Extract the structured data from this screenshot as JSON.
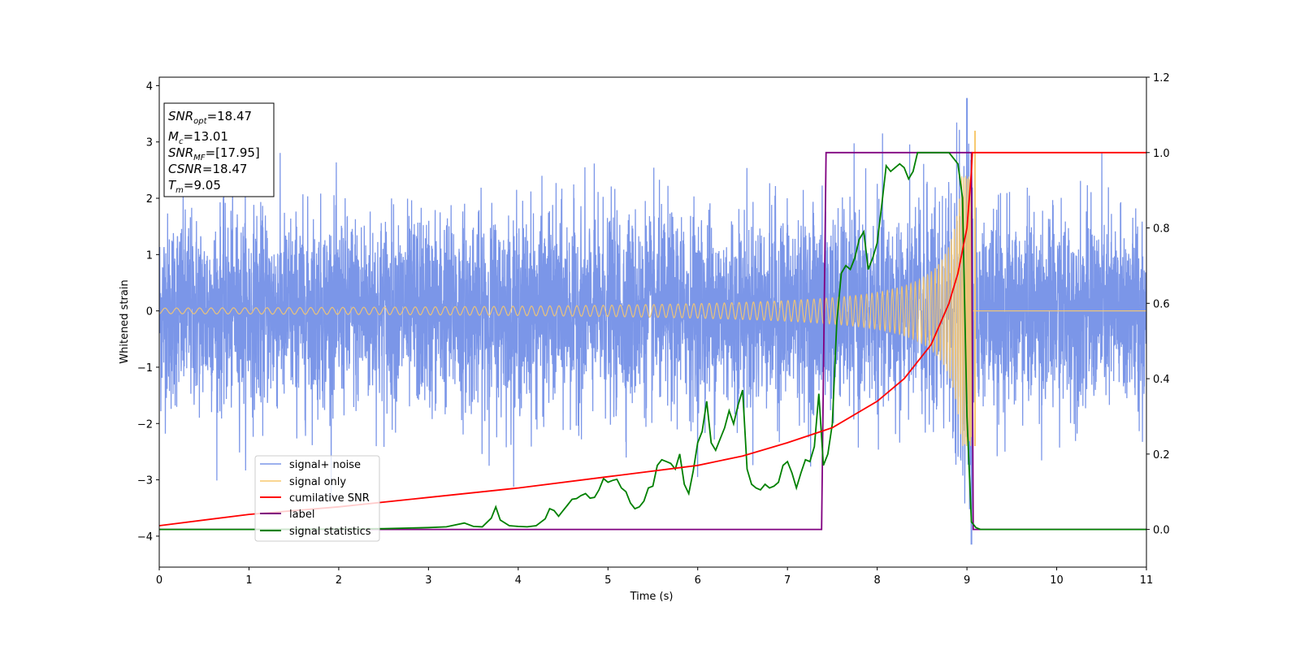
{
  "chart_data": {
    "type": "line",
    "xlabel": "Time (s)",
    "ylabel": "Whitened strain",
    "xlim": [
      0,
      11
    ],
    "ylim": [
      -4.55,
      4.15
    ],
    "y2lim": [
      -0.1,
      1.2
    ],
    "x_ticks": [
      "0",
      "1",
      "2",
      "3",
      "4",
      "5",
      "6",
      "7",
      "8",
      "9",
      "10",
      "11"
    ],
    "y_ticks": [
      "4",
      "3",
      "2",
      "1",
      "0",
      "−1",
      "−2",
      "−3",
      "−4"
    ],
    "y2_ticks": [
      "1.2",
      "1.0",
      "0.8",
      "0.6",
      "0.4",
      "0.2",
      "0.0"
    ],
    "grid": false,
    "legend_position": "lower-left",
    "info_box": [
      {
        "main": "SNR",
        "sub": "opt",
        "value": "=18.47"
      },
      {
        "main": "M",
        "sub": "c",
        "value": "=13.01"
      },
      {
        "main": "SNR",
        "sub": "MF",
        "value": "=[17.95]"
      },
      {
        "main": "CSNR",
        "sub": "",
        "value": "=18.47"
      },
      {
        "main": "T",
        "sub": "m",
        "value": "=9.05"
      }
    ],
    "series": [
      {
        "name": "signal+ noise",
        "color": "#7b96e8",
        "axis": "left",
        "description_values": {
          "typical_range": [
            -2.3,
            2.3
          ],
          "max": 3.78,
          "min": -4.15,
          "max_at": 9.0,
          "min_at": 9.05
        }
      },
      {
        "name": "signal only",
        "color": "#f7c86e",
        "axis": "left",
        "chirp": {
          "start_amplitude": 0.05,
          "end_amplitude": 2.4,
          "merger_time": 9.05,
          "peak": 3.2
        }
      },
      {
        "name": "cumilative SNR",
        "color": "#ff0000",
        "axis": "right",
        "x": [
          0,
          1,
          2,
          3,
          4,
          5,
          6,
          6.5,
          7,
          7.5,
          8,
          8.3,
          8.6,
          8.8,
          8.9,
          9.0,
          9.05,
          9.06,
          11
        ],
        "y": [
          0.01,
          0.04,
          0.06,
          0.085,
          0.11,
          0.14,
          0.17,
          0.195,
          0.23,
          0.27,
          0.34,
          0.4,
          0.49,
          0.6,
          0.68,
          0.8,
          0.95,
          1.0,
          1.0
        ]
      },
      {
        "name": "label",
        "color": "#800080",
        "axis": "right",
        "x": [
          0,
          7.38,
          7.43,
          9.05,
          9.07,
          11
        ],
        "y": [
          0,
          0,
          1,
          1,
          0,
          0
        ]
      },
      {
        "name": "signal statistics",
        "color": "#008000",
        "axis": "right",
        "x": [
          0,
          1,
          2,
          2.5,
          3,
          3.2,
          3.4,
          3.5,
          3.6,
          3.7,
          3.75,
          3.8,
          3.9,
          4.0,
          4.1,
          4.2,
          4.3,
          4.35,
          4.4,
          4.45,
          4.5,
          4.55,
          4.6,
          4.65,
          4.7,
          4.75,
          4.8,
          4.85,
          4.9,
          4.95,
          5.0,
          5.05,
          5.1,
          5.15,
          5.2,
          5.25,
          5.3,
          5.35,
          5.4,
          5.45,
          5.5,
          5.55,
          5.6,
          5.65,
          5.7,
          5.75,
          5.8,
          5.85,
          5.9,
          5.95,
          6.0,
          6.05,
          6.1,
          6.15,
          6.2,
          6.25,
          6.3,
          6.35,
          6.4,
          6.45,
          6.5,
          6.55,
          6.6,
          6.65,
          6.7,
          6.75,
          6.8,
          6.85,
          6.9,
          6.95,
          7.0,
          7.05,
          7.1,
          7.15,
          7.2,
          7.25,
          7.3,
          7.35,
          7.4,
          7.45,
          7.5,
          7.55,
          7.6,
          7.65,
          7.7,
          7.75,
          7.8,
          7.85,
          7.9,
          7.95,
          8.0,
          8.05,
          8.1,
          8.15,
          8.2,
          8.25,
          8.3,
          8.35,
          8.4,
          8.45,
          8.5,
          8.6,
          8.7,
          8.8,
          8.9,
          8.95,
          9.0,
          9.05,
          9.1,
          9.15,
          9.2,
          9.5,
          10,
          11
        ],
        "y": [
          0,
          0,
          0.001,
          0.002,
          0.005,
          0.007,
          0.017,
          0.008,
          0.007,
          0.03,
          0.06,
          0.025,
          0.01,
          0.008,
          0.007,
          0.01,
          0.028,
          0.055,
          0.05,
          0.035,
          0.05,
          0.065,
          0.08,
          0.082,
          0.09,
          0.095,
          0.083,
          0.085,
          0.105,
          0.135,
          0.125,
          0.13,
          0.133,
          0.11,
          0.1,
          0.07,
          0.055,
          0.06,
          0.075,
          0.11,
          0.115,
          0.17,
          0.185,
          0.18,
          0.175,
          0.16,
          0.2,
          0.12,
          0.095,
          0.155,
          0.23,
          0.26,
          0.34,
          0.23,
          0.21,
          0.24,
          0.27,
          0.315,
          0.28,
          0.33,
          0.37,
          0.16,
          0.12,
          0.11,
          0.105,
          0.12,
          0.11,
          0.115,
          0.125,
          0.17,
          0.18,
          0.15,
          0.11,
          0.15,
          0.185,
          0.18,
          0.22,
          0.36,
          0.17,
          0.2,
          0.28,
          0.55,
          0.68,
          0.7,
          0.69,
          0.72,
          0.77,
          0.79,
          0.69,
          0.72,
          0.76,
          0.86,
          0.965,
          0.95,
          0.96,
          0.97,
          0.96,
          0.93,
          0.95,
          1.0,
          1.0,
          1.0,
          1.0,
          1.0,
          0.97,
          0.88,
          0.3,
          0.02,
          0.005,
          0.0,
          0.0,
          0.0,
          0.0,
          0.0
        ]
      }
    ]
  }
}
